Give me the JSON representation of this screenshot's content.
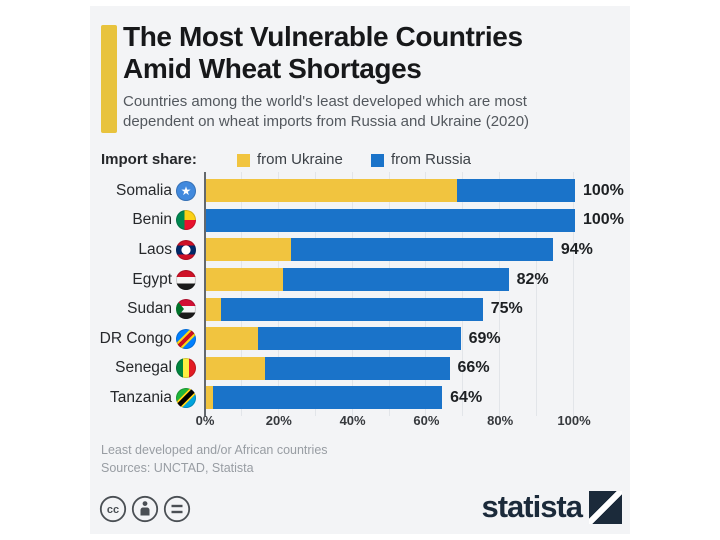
{
  "header": {
    "title_line1": "The Most Vulnerable Countries",
    "title_line2": "Amid Wheat Shortages",
    "subtitle_line1": "Countries among the world's least developed which are most",
    "subtitle_line2": "dependent on wheat imports from Russia and Ukraine (2020)"
  },
  "legend": {
    "label": "Import share:",
    "ukraine_label": "from Ukraine",
    "russia_label": "from Russia"
  },
  "chart_data": {
    "type": "bar",
    "stacked": true,
    "orientation": "horizontal",
    "unit": "%",
    "categories": [
      "Somalia",
      "Benin",
      "Laos",
      "Egypt",
      "Sudan",
      "DR Congo",
      "Senegal",
      "Tanzania"
    ],
    "flag_icons": [
      "somalia-flag-icon",
      "benin-flag-icon",
      "laos-flag-icon",
      "egypt-flag-icon",
      "sudan-flag-icon",
      "drcongo-flag-icon",
      "senegal-flag-icon",
      "tanzania-flag-icon"
    ],
    "flag_keys": [
      "somalia",
      "benin",
      "laos",
      "egypt",
      "sudan",
      "drcongo",
      "senegal",
      "tanzania"
    ],
    "series": [
      {
        "name": "from Ukraine",
        "color": "#F1C43F",
        "values": [
          68,
          0,
          23,
          21,
          4,
          14,
          16,
          2
        ]
      },
      {
        "name": "from Russia",
        "color": "#1A73C9",
        "values": [
          32,
          100,
          71,
          61,
          71,
          55,
          50,
          62
        ]
      }
    ],
    "totals": [
      100,
      100,
      94,
      82,
      75,
      69,
      66,
      64
    ],
    "total_labels": [
      "100%",
      "100%",
      "94%",
      "82%",
      "75%",
      "69%",
      "66%",
      "64%"
    ],
    "x_ticks": [
      "0%",
      "20%",
      "40%",
      "60%",
      "80%",
      "100%"
    ],
    "xlim": [
      0,
      100
    ],
    "grid": true,
    "legend_position": "top"
  },
  "footer": {
    "note": "Least developed and/or African countries",
    "source": "Sources: UNCTAD, Statista"
  },
  "branding": {
    "logo_text": "statista",
    "cc_icons": [
      "cc-icon",
      "attribution-icon",
      "equals-icon"
    ]
  },
  "colors": {
    "ukraine": "#F1C43F",
    "russia": "#1A73C9",
    "accent_bar": "#E8C33D",
    "background": "#F3F4F6",
    "axis": "#63686D",
    "grid": "#E2E5E9",
    "brand_navy": "#1B2A3A"
  }
}
